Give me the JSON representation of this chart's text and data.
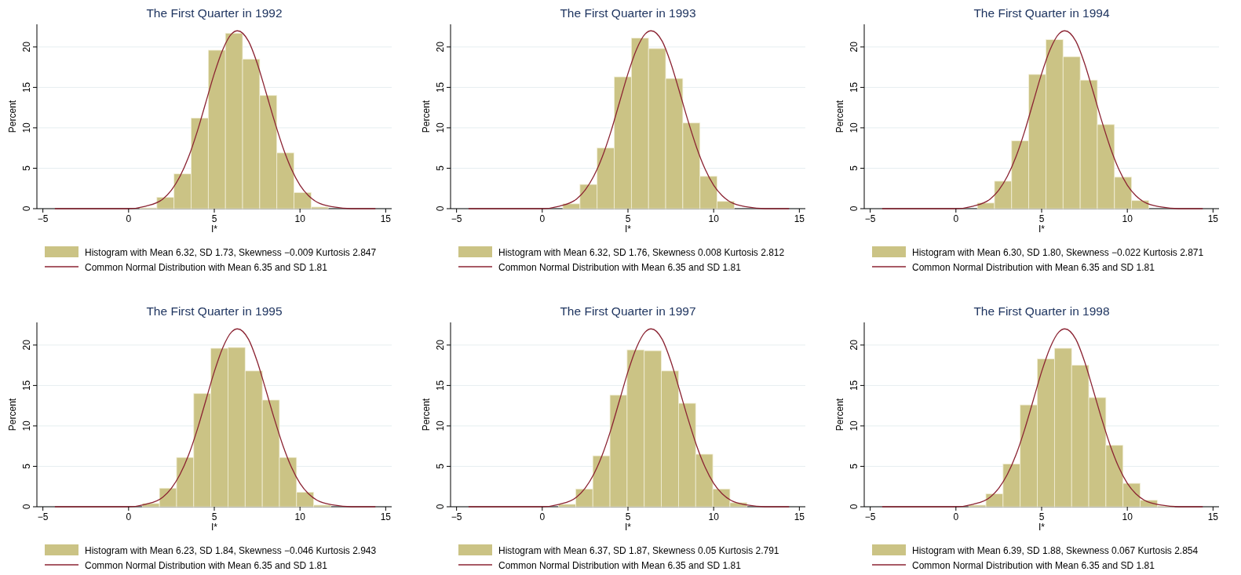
{
  "chart_data": [
    {
      "type": "histogram",
      "title": "The First Quarter in 1992",
      "xlabel": "I*",
      "ylabel": "Percent",
      "bins": [
        0.65,
        1.65,
        2.65,
        3.65,
        4.65,
        5.65,
        6.65,
        7.65,
        8.65,
        9.65,
        10.65,
        11.65
      ],
      "xlim": [
        -5.35,
        15.35
      ],
      "xticks": [
        -5,
        0,
        5,
        10,
        15
      ],
      "ylim": [
        0,
        22.8
      ],
      "yticks": [
        0,
        5,
        10,
        15,
        20
      ],
      "grid": "y",
      "legend": "bottom",
      "series": [
        {
          "name": "Histogram with Mean 6.32, SD 1.73, Skewness −0.009 Kurtosis 2.847",
          "color": "#cbc385",
          "values": [
            0.1,
            1.4,
            4.3,
            11.2,
            19.6,
            21.7,
            18.5,
            14.0,
            6.9,
            2.0,
            0.2
          ]
        },
        {
          "type": "line",
          "name": "Common Normal Distribution with Mean 6.35 and SD 1.81",
          "color": "#8b2332",
          "x": [
            -4.3,
            0,
            1,
            2,
            2.5,
            3,
            3.5,
            4,
            4.5,
            5,
            5.5,
            6,
            6.35,
            7,
            7.5,
            8,
            8.5,
            9,
            9.5,
            10,
            10.5,
            11,
            12,
            13,
            14.4
          ],
          "values": [
            0,
            0,
            0.3,
            1.2,
            2.3,
            4.0,
            6.4,
            9.5,
            13.1,
            16.7,
            19.7,
            21.6,
            22.0,
            20.7,
            18.0,
            14.5,
            10.9,
            7.6,
            4.9,
            2.9,
            1.6,
            0.8,
            0.2,
            0,
            0
          ]
        }
      ]
    },
    {
      "type": "histogram",
      "title": "The First Quarter in 1993",
      "xlabel": "I*",
      "ylabel": "Percent",
      "bins": [
        1.2,
        2.2,
        3.2,
        4.2,
        5.2,
        6.2,
        7.2,
        8.2,
        9.2,
        10.2,
        11.2
      ],
      "xlim": [
        -5.35,
        15.35
      ],
      "xticks": [
        -5,
        0,
        5,
        10,
        15
      ],
      "ylim": [
        0,
        22.8
      ],
      "yticks": [
        0,
        5,
        10,
        15,
        20
      ],
      "grid": "y",
      "legend": "bottom",
      "series": [
        {
          "name": "Histogram with Mean 6.32, SD 1.76, Skewness 0.008 Kurtosis 2.812",
          "color": "#cbc385",
          "values": [
            0.6,
            3.0,
            7.5,
            16.3,
            21.1,
            19.8,
            16.1,
            10.6,
            4.0,
            0.9
          ]
        },
        {
          "type": "line",
          "name": "Common Normal Distribution with Mean 6.35 and SD 1.81",
          "color": "#8b2332",
          "x": [
            -4.3,
            0,
            1,
            2,
            2.5,
            3,
            3.5,
            4,
            4.5,
            5,
            5.5,
            6,
            6.35,
            7,
            7.5,
            8,
            8.5,
            9,
            9.5,
            10,
            10.5,
            11,
            12,
            13,
            14.4
          ],
          "values": [
            0,
            0,
            0.3,
            1.2,
            2.3,
            4.0,
            6.4,
            9.5,
            13.1,
            16.7,
            19.7,
            21.6,
            22.0,
            20.7,
            18.0,
            14.5,
            10.9,
            7.6,
            4.9,
            2.9,
            1.6,
            0.8,
            0.2,
            0,
            0
          ]
        }
      ]
    },
    {
      "type": "histogram",
      "title": "The First Quarter in 1994",
      "xlabel": "I*",
      "ylabel": "Percent",
      "bins": [
        1.25,
        2.25,
        3.25,
        4.25,
        5.25,
        6.25,
        7.25,
        8.25,
        9.25,
        10.25,
        11.25
      ],
      "xlim": [
        -5.35,
        15.35
      ],
      "xticks": [
        -5,
        0,
        5,
        10,
        15
      ],
      "ylim": [
        0,
        22.8
      ],
      "yticks": [
        0,
        5,
        10,
        15,
        20
      ],
      "grid": "y",
      "legend": "bottom",
      "series": [
        {
          "name": "Histogram with Mean 6.30, SD 1.80, Skewness −0.022 Kurtosis 2.871",
          "color": "#cbc385",
          "values": [
            0.7,
            3.4,
            8.4,
            16.6,
            20.9,
            18.8,
            15.9,
            10.4,
            3.9,
            1.0
          ]
        },
        {
          "type": "line",
          "name": "Common Normal Distribution with Mean 6.35 and SD 1.81",
          "color": "#8b2332",
          "x": [
            -4.3,
            0,
            1,
            2,
            2.5,
            3,
            3.5,
            4,
            4.5,
            5,
            5.5,
            6,
            6.35,
            7,
            7.5,
            8,
            8.5,
            9,
            9.5,
            10,
            10.5,
            11,
            12,
            13,
            14.4
          ],
          "values": [
            0,
            0,
            0.3,
            1.2,
            2.3,
            4.0,
            6.4,
            9.5,
            13.1,
            16.7,
            19.7,
            21.6,
            22.0,
            20.7,
            18.0,
            14.5,
            10.9,
            7.6,
            4.9,
            2.9,
            1.6,
            0.8,
            0.2,
            0,
            0
          ]
        }
      ]
    },
    {
      "type": "histogram",
      "title": "The First Quarter in 1995",
      "xlabel": "I*",
      "ylabel": "Percent",
      "bins": [
        0.8,
        1.8,
        2.8,
        3.8,
        4.8,
        5.8,
        6.8,
        7.8,
        8.8,
        9.8,
        10.8,
        11.8
      ],
      "xlim": [
        -5.35,
        15.35
      ],
      "xticks": [
        -5,
        0,
        5,
        10,
        15
      ],
      "ylim": [
        0,
        22.8
      ],
      "yticks": [
        0,
        5,
        10,
        15,
        20
      ],
      "grid": "y",
      "legend": "bottom",
      "series": [
        {
          "name": "Histogram with Mean 6.23, SD 1.84, Skewness −0.046 Kurtosis 2.943",
          "color": "#cbc385",
          "values": [
            0.4,
            2.3,
            6.1,
            14.0,
            19.6,
            19.7,
            16.8,
            13.2,
            6.1,
            1.8,
            0.2
          ]
        },
        {
          "type": "line",
          "name": "Common Normal Distribution with Mean 6.35 and SD 1.81",
          "color": "#8b2332",
          "x": [
            -4.3,
            0,
            1,
            2,
            2.5,
            3,
            3.5,
            4,
            4.5,
            5,
            5.5,
            6,
            6.35,
            7,
            7.5,
            8,
            8.5,
            9,
            9.5,
            10,
            10.5,
            11,
            12,
            13,
            14.4
          ],
          "values": [
            0,
            0,
            0.3,
            1.2,
            2.3,
            4.0,
            6.4,
            9.5,
            13.1,
            16.7,
            19.7,
            21.6,
            22.0,
            20.7,
            18.0,
            14.5,
            10.9,
            7.6,
            4.9,
            2.9,
            1.6,
            0.8,
            0.2,
            0,
            0
          ]
        }
      ]
    },
    {
      "type": "histogram",
      "title": "The First Quarter in 1997",
      "xlabel": "I*",
      "ylabel": "Percent",
      "bins": [
        0.95,
        1.95,
        2.95,
        3.95,
        4.95,
        5.95,
        6.95,
        7.95,
        8.95,
        9.95,
        10.95,
        11.95
      ],
      "xlim": [
        -5.35,
        15.35
      ],
      "xticks": [
        -5,
        0,
        5,
        10,
        15
      ],
      "ylim": [
        0,
        22.8
      ],
      "yticks": [
        0,
        5,
        10,
        15,
        20
      ],
      "grid": "y",
      "legend": "bottom",
      "series": [
        {
          "name": "Histogram with Mean 6.37, SD 1.87, Skewness 0.05 Kurtosis 2.791",
          "color": "#cbc385",
          "values": [
            0.3,
            2.2,
            6.3,
            13.8,
            19.4,
            19.3,
            16.8,
            12.8,
            6.5,
            2.2,
            0.5
          ]
        },
        {
          "type": "line",
          "name": "Common Normal Distribution with Mean 6.35 and SD 1.81",
          "color": "#8b2332",
          "x": [
            -4.3,
            0,
            1,
            2,
            2.5,
            3,
            3.5,
            4,
            4.5,
            5,
            5.5,
            6,
            6.35,
            7,
            7.5,
            8,
            8.5,
            9,
            9.5,
            10,
            10.5,
            11,
            12,
            13,
            14.4
          ],
          "values": [
            0,
            0,
            0.3,
            1.2,
            2.3,
            4.0,
            6.4,
            9.5,
            13.1,
            16.7,
            19.7,
            21.6,
            22.0,
            20.7,
            18.0,
            14.5,
            10.9,
            7.6,
            4.9,
            2.9,
            1.6,
            0.8,
            0.2,
            0,
            0
          ]
        }
      ]
    },
    {
      "type": "histogram",
      "title": "The First Quarter in 1998",
      "xlabel": "I*",
      "ylabel": "Percent",
      "bins": [
        0.75,
        1.75,
        2.75,
        3.75,
        4.75,
        5.75,
        6.75,
        7.75,
        8.75,
        9.75,
        10.75,
        11.75,
        12.75
      ],
      "xlim": [
        -5.35,
        15.35
      ],
      "xticks": [
        -5,
        0,
        5,
        10,
        15
      ],
      "ylim": [
        0,
        22.8
      ],
      "yticks": [
        0,
        5,
        10,
        15,
        20
      ],
      "grid": "y",
      "legend": "bottom",
      "series": [
        {
          "name": "Histogram with Mean 6.39, SD 1.88, Skewness 0.067 Kurtosis 2.854",
          "color": "#cbc385",
          "values": [
            0.2,
            1.6,
            5.3,
            12.6,
            18.3,
            19.6,
            17.5,
            13.5,
            7.6,
            2.9,
            0.8,
            0.1
          ]
        },
        {
          "type": "line",
          "name": "Common Normal Distribution with Mean 6.35 and SD 1.81",
          "color": "#8b2332",
          "x": [
            -4.3,
            0,
            1,
            2,
            2.5,
            3,
            3.5,
            4,
            4.5,
            5,
            5.5,
            6,
            6.35,
            7,
            7.5,
            8,
            8.5,
            9,
            9.5,
            10,
            10.5,
            11,
            12,
            13,
            14.4
          ],
          "values": [
            0,
            0,
            0.3,
            1.2,
            2.3,
            4.0,
            6.4,
            9.5,
            13.1,
            16.7,
            19.7,
            21.6,
            22.0,
            20.7,
            18.0,
            14.5,
            10.9,
            7.6,
            4.9,
            2.9,
            1.6,
            0.8,
            0.2,
            0,
            0
          ]
        }
      ]
    }
  ]
}
